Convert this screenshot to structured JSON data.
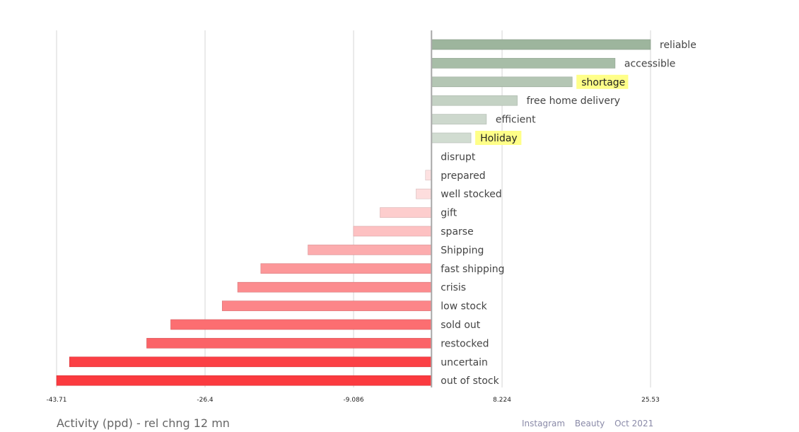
{
  "chart_data": {
    "type": "bar",
    "orientation": "horizontal",
    "categories": [
      "reliable",
      "accessible",
      "shortage",
      "free home delivery",
      "efficient",
      "Holiday",
      "disrupt",
      "prepared",
      "well stocked",
      "gift",
      "sparse",
      "Shipping",
      "fast shipping",
      "crisis",
      "low stock",
      "sold out",
      "restocked",
      "uncertain",
      "out of stock"
    ],
    "values": [
      25.53,
      21.4,
      16.4,
      10.0,
      6.4,
      4.6,
      0.0,
      -0.7,
      -1.8,
      -6.0,
      -9.1,
      -14.4,
      -19.9,
      -22.6,
      -24.4,
      -30.4,
      -33.2,
      -42.2,
      -43.71
    ],
    "highlighted": [
      "shortage",
      "Holiday"
    ],
    "xlim": [
      -43.71,
      25.53
    ],
    "xticks": [
      -43.71,
      -26.4,
      -9.086,
      8.224,
      25.53
    ],
    "xtick_labels": [
      "-43.71",
      "-26.4",
      "-9.086",
      "8.224",
      "25.53"
    ],
    "grid": true,
    "xlabel": "Activity (ppd) - rel chng 12 mn",
    "colors": {
      "positive_max": "#9db59d",
      "positive_min": "#dde4dd",
      "negative_min": "#fde4e4",
      "negative_max": "#fb3a3f",
      "highlight": "#ffff88",
      "grid": "#d6d6d6",
      "zero_line": "#a8a8a8"
    }
  },
  "footer": {
    "title": "Activity (ppd) - rel chng 12 mn",
    "platform": "Instagram",
    "category": "Beauty",
    "date": "Oct 2021"
  }
}
